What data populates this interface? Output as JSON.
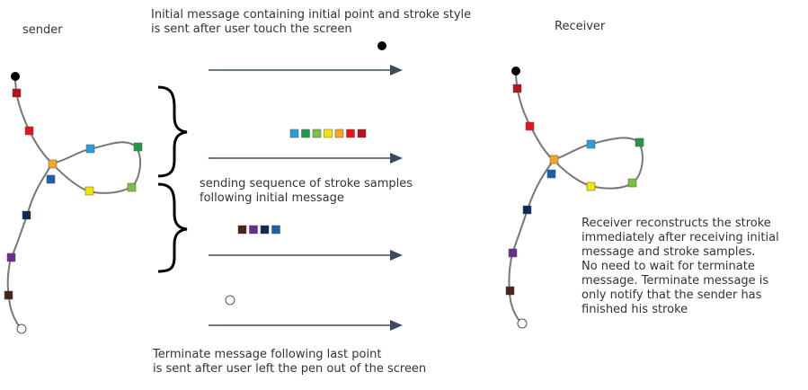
{
  "labels": {
    "sender": "sender",
    "receiver": "Receiver",
    "initial_message": "Initial message containing initial point and stroke style\nis sent after user touch the screen",
    "sequence_message": "sending sequence of stroke samples\nfollowing initial message",
    "terminate_message": "Terminate message following last point\nis sent after user left the pen out of the screen",
    "receiver_note": "Receiver reconstructs the stroke\nimmediately after receiving initial\nmessage and stroke samples.\nNo need to wait for terminate\nmessage. Terminate message is\nonly notify that the sender has\nfinished his stroke"
  },
  "colors": {
    "stroke": "#777777",
    "arrow": "#3a4a60",
    "sample_dark_red": "#b5121b",
    "sample_red": "#e8141c",
    "sample_orange": "#f5a623",
    "sample_blue": "#1b5fb0",
    "sample_navy": "#0d2a5c",
    "sample_purple": "#6a2c91",
    "sample_brown": "#4a2418",
    "sample_light_blue": "#2a9fd8",
    "sample_green": "#1e9a48",
    "sample_yellow": "#f2e600",
    "sample_lime": "#7ac143"
  },
  "packet_1_colors": [
    "#2a9fd8",
    "#1e9a48",
    "#7ac143",
    "#f2e600",
    "#f5a623",
    "#e8141c",
    "#b5121b"
  ],
  "packet_2_colors": [
    "#4a2418",
    "#6a2c91",
    "#0d2a5c",
    "#1b5fb0"
  ]
}
